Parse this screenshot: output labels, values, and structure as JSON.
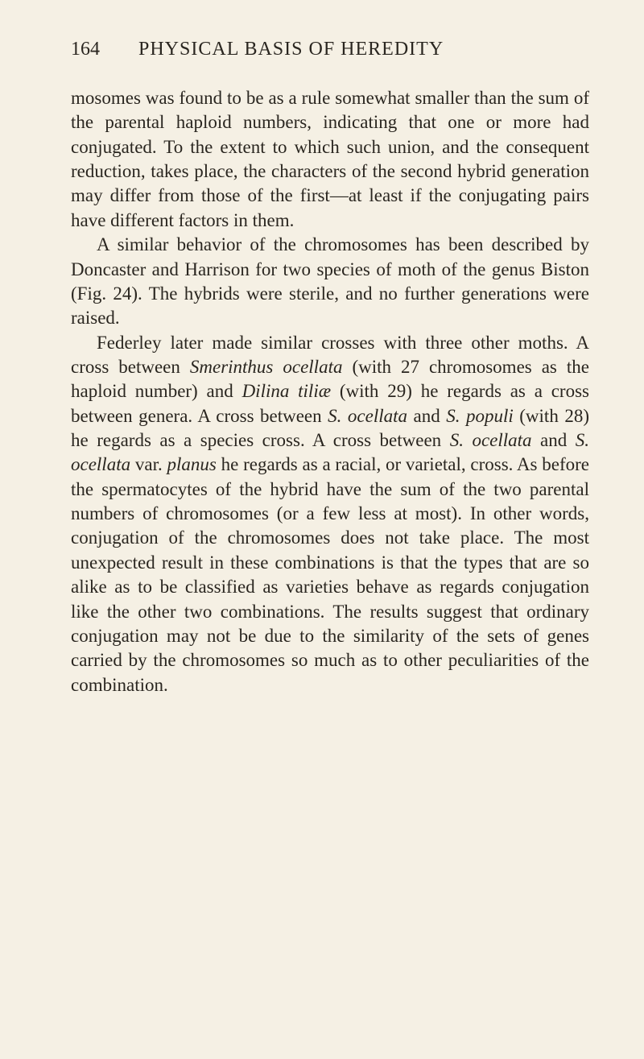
{
  "page": {
    "number": "164",
    "title": "PHYSICAL BASIS OF HEREDITY"
  },
  "paragraphs": {
    "p1": {
      "text": "mosomes was found to be as a rule somewhat smaller than the sum of the parental haploid numbers, indicating that one or more had conjugated. To the extent to which such union, and the consequent reduction, takes place, the characters of the second hybrid generation may differ from those of the first—at least if the conjugating pairs have different factors in them."
    },
    "p2": {
      "text": "A similar behavior of the chromosomes has been described by Doncaster and Harrison for two species of moth of the genus Biston (Fig. 24). The hybrids were sterile, and no further generations were raised."
    },
    "p3": {
      "part1": "Federley later made similar crosses with three other moths. A cross between ",
      "species1": "Smerinthus ocellata",
      "part2": " (with 27 chromosomes as the haploid number) and ",
      "species2": "Dilina tiliæ",
      "part3": " (with 29) he regards as a cross between genera. A cross between ",
      "species3": "S. ocellata",
      "part4": " and ",
      "species4": "S. populi",
      "part5": " (with 28) he regards as a species cross. A cross between ",
      "species5": "S. ocellata",
      "part6": " and ",
      "species6": "S. ocellata",
      "part7": " var. ",
      "species7": "planus",
      "part8": " he regards as a racial, or varietal, cross. As before the spermatocytes of the hybrid have the sum of the two parental numbers of chromosomes (or a few less at most). In other words, conjugation of the chromosomes does not take place. The most unexpected result in these combinations is that the types that are so alike as to be classified as varieties behave as regards conjugation like the other two combinations. The results suggest that ordinary conjugation may not be due to the similarity of the sets of genes carried by the chromosomes so much as to other peculiarities of the combination."
    }
  },
  "colors": {
    "background": "#f5f0e4",
    "text": "#2a2620"
  },
  "typography": {
    "body_fontsize": 23,
    "header_fontsize": 24,
    "line_height": 1.32,
    "font_family": "Times New Roman"
  }
}
